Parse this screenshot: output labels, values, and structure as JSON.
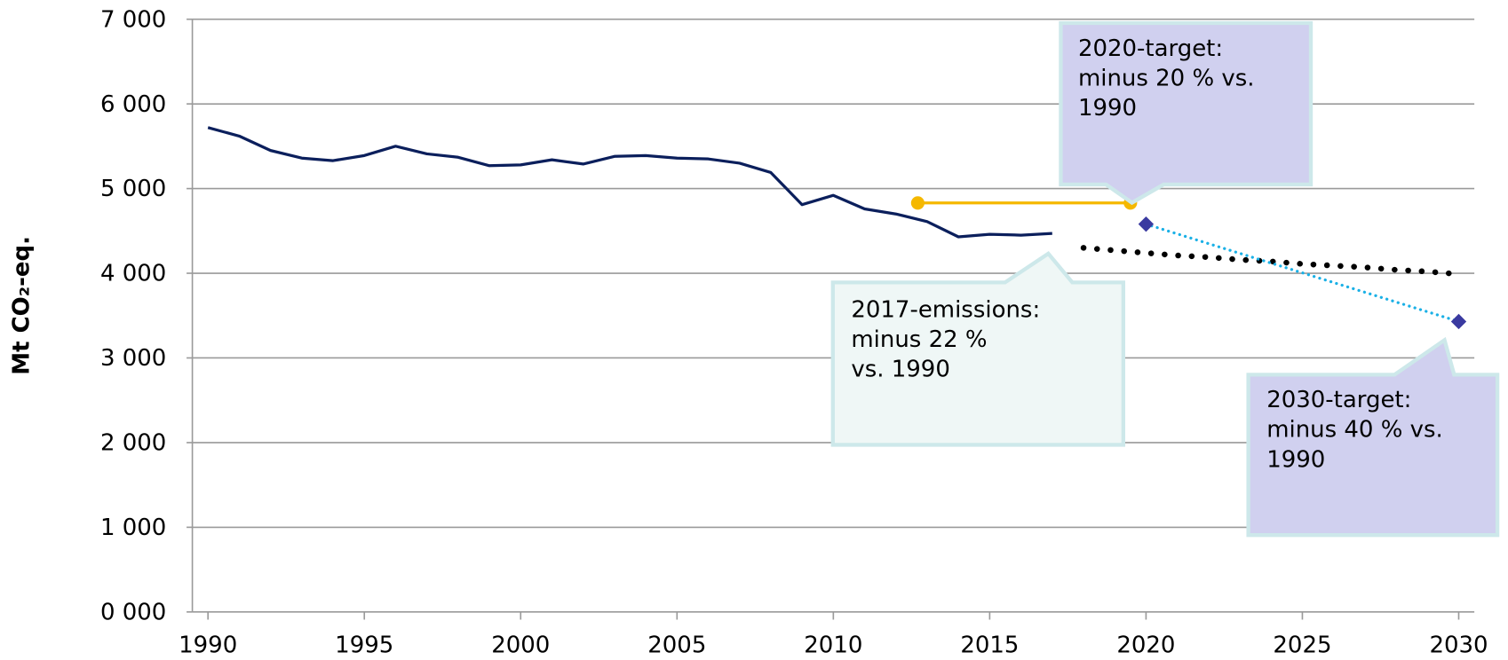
{
  "chart_data": {
    "type": "line",
    "y_label": "Mt CO₂-eq.",
    "xlim": [
      1989.5,
      2030.5
    ],
    "xticks": [
      1990,
      1995,
      2000,
      2005,
      2010,
      2015,
      2020,
      2025,
      2030
    ],
    "ylim": [
      0,
      7000
    ],
    "yticks": [
      {
        "value": 0,
        "label": "0 000"
      },
      {
        "value": 1000,
        "label": "1 000"
      },
      {
        "value": 2000,
        "label": "2 000"
      },
      {
        "value": 3000,
        "label": "3 000"
      },
      {
        "value": 4000,
        "label": "4 000"
      },
      {
        "value": 5000,
        "label": "5 000"
      },
      {
        "value": 6000,
        "label": "6 000"
      },
      {
        "value": 7000,
        "label": "7 000"
      }
    ],
    "grid": true,
    "series": [
      {
        "color": "#0b1f5c",
        "style": "solid",
        "marker": "none",
        "x": [
          1990,
          1991,
          1992,
          1993,
          1994,
          1995,
          1996,
          1997,
          1998,
          1999,
          2000,
          2001,
          2002,
          2003,
          2004,
          2005,
          2006,
          2007,
          2008,
          2009,
          2010,
          2011,
          2012,
          2013,
          2014,
          2015,
          2016,
          2017
        ],
        "values": [
          5720,
          5620,
          5450,
          5360,
          5330,
          5390,
          5500,
          5410,
          5370,
          5270,
          5280,
          5340,
          5290,
          5380,
          5390,
          5360,
          5350,
          5300,
          5190,
          4810,
          4920,
          4760,
          4700,
          4610,
          4430,
          4460,
          4450,
          4470
        ]
      },
      {
        "color": "#f5b800",
        "style": "solid",
        "marker": "circle",
        "x": [
          2012.7,
          2019.5
        ],
        "values": [
          4830,
          4830
        ]
      },
      {
        "color": "#000000",
        "style": "dotted",
        "marker": "none",
        "x": [
          2018,
          2019,
          2020,
          2021,
          2022,
          2023,
          2024,
          2025,
          2026,
          2027,
          2028,
          2029,
          2030
        ],
        "values": [
          4300,
          4270,
          4240,
          4210,
          4190,
          4160,
          4140,
          4110,
          4090,
          4070,
          4040,
          4020,
          3990
        ]
      },
      {
        "color": "#1ab0e6",
        "marker_color": "#3a3aa0",
        "style": "dotted-thin",
        "marker": "diamond",
        "x": [
          2020,
          2030
        ],
        "values": [
          4580,
          3430
        ]
      }
    ],
    "annotations": [
      {
        "lines": [
          "2020-target:",
          "minus 20 % vs.",
          "1990"
        ]
      },
      {
        "lines": [
          "2017-emissions:",
          "minus 22 %",
          "vs. 1990"
        ]
      },
      {
        "lines": [
          "2030-target:",
          "minus 40 % vs.",
          "1990"
        ]
      }
    ]
  }
}
